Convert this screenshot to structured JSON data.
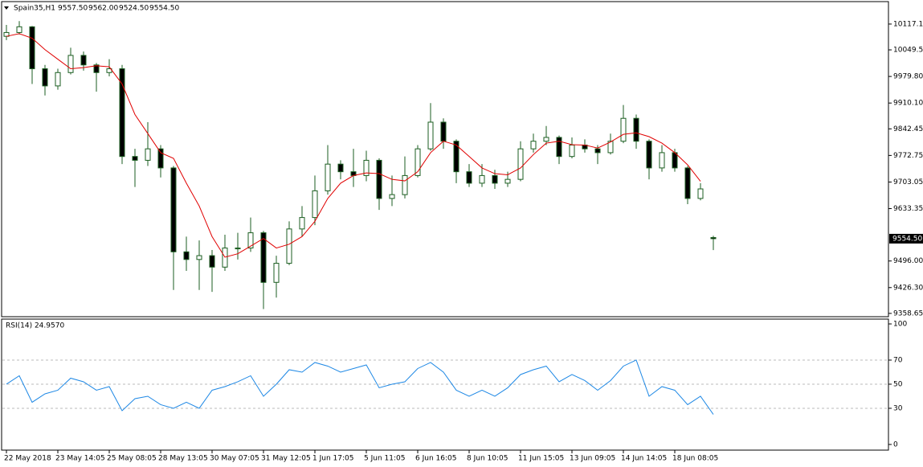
{
  "chart_data": [
    {
      "type": "candlestick",
      "symbol": "Spain35,H1",
      "header_values": [
        "9557.50",
        "9562.00",
        "9524.50",
        "9554.50"
      ],
      "last_price_label": "9554.50",
      "categories": [
        "22 May 2018",
        null,
        null,
        null,
        "23 May 14:05",
        null,
        null,
        null,
        "25 May 08:05",
        null,
        null,
        null,
        "28 May 13:05",
        null,
        null,
        null,
        "30 May 07:05",
        null,
        null,
        null,
        "31 May 12:05",
        null,
        null,
        null,
        "1 Jun 17:05",
        null,
        null,
        null,
        "5 Jun 11:05",
        null,
        null,
        null,
        "6 Jun 16:05",
        null,
        null,
        null,
        "8 Jun 10:05",
        null,
        null,
        null,
        "11 Jun 15:05",
        null,
        null,
        null,
        "13 Jun 09:05",
        null,
        null,
        null,
        "14 Jun 14:05",
        null,
        null,
        null,
        "18 Jun 08:05",
        null,
        null,
        null
      ],
      "ohlc": [
        [
          10085,
          10115,
          10075,
          10095
        ],
        [
          10095,
          10125,
          10090,
          10110
        ],
        [
          10110,
          10112,
          9960,
          10000
        ],
        [
          10000,
          10010,
          9930,
          9955
        ],
        [
          9955,
          10000,
          9945,
          9990
        ],
        [
          9990,
          10055,
          9985,
          10035
        ],
        [
          10035,
          10045,
          9995,
          10010
        ],
        [
          10010,
          10015,
          9940,
          9990
        ],
        [
          9990,
          10025,
          9980,
          10000
        ],
        [
          10000,
          10010,
          9750,
          9770
        ],
        [
          9770,
          9790,
          9690,
          9760
        ],
        [
          9760,
          9860,
          9745,
          9790
        ],
        [
          9790,
          9800,
          9715,
          9740
        ],
        [
          9740,
          9745,
          9420,
          9520
        ],
        [
          9520,
          9560,
          9470,
          9500
        ],
        [
          9500,
          9550,
          9420,
          9510
        ],
        [
          9510,
          9525,
          9415,
          9480
        ],
        [
          9480,
          9565,
          9470,
          9530
        ],
        [
          9530,
          9570,
          9500,
          9530
        ],
        [
          9530,
          9610,
          9520,
          9570
        ],
        [
          9570,
          9575,
          9370,
          9440
        ],
        [
          9440,
          9510,
          9400,
          9490
        ],
        [
          9490,
          9600,
          9485,
          9580
        ],
        [
          9580,
          9640,
          9560,
          9610
        ],
        [
          9610,
          9720,
          9590,
          9680
        ],
        [
          9680,
          9800,
          9670,
          9750
        ],
        [
          9750,
          9760,
          9710,
          9730
        ],
        [
          9730,
          9790,
          9690,
          9720
        ],
        [
          9720,
          9785,
          9705,
          9760
        ],
        [
          9760,
          9765,
          9630,
          9660
        ],
        [
          9660,
          9720,
          9640,
          9670
        ],
        [
          9670,
          9770,
          9660,
          9720
        ],
        [
          9720,
          9800,
          9715,
          9790
        ],
        [
          9790,
          9910,
          9785,
          9860
        ],
        [
          9860,
          9870,
          9790,
          9810
        ],
        [
          9810,
          9815,
          9700,
          9730
        ],
        [
          9730,
          9750,
          9690,
          9700
        ],
        [
          9700,
          9750,
          9690,
          9720
        ],
        [
          9720,
          9735,
          9685,
          9700
        ],
        [
          9700,
          9730,
          9690,
          9710
        ],
        [
          9710,
          9810,
          9705,
          9790
        ],
        [
          9790,
          9830,
          9780,
          9810
        ],
        [
          9810,
          9850,
          9800,
          9820
        ],
        [
          9820,
          9825,
          9750,
          9770
        ],
        [
          9770,
          9820,
          9765,
          9800
        ],
        [
          9800,
          9815,
          9780,
          9790
        ],
        [
          9790,
          9800,
          9750,
          9780
        ],
        [
          9780,
          9830,
          9775,
          9810
        ],
        [
          9810,
          9905,
          9805,
          9870
        ],
        [
          9870,
          9880,
          9790,
          9810
        ],
        [
          9810,
          9815,
          9710,
          9740
        ],
        [
          9740,
          9800,
          9730,
          9780
        ],
        [
          9780,
          9790,
          9730,
          9740
        ],
        [
          9740,
          9745,
          9645,
          9660
        ],
        [
          9660,
          9700,
          9655,
          9685
        ],
        [
          9557.5,
          9562,
          9524.5,
          9554.5
        ]
      ],
      "candle_color": "#1b5e20",
      "series": [
        {
          "color": "#e00000",
          "values": [
            10085,
            10092,
            10080,
            10050,
            10025,
            10000,
            10003,
            10008,
            10005,
            9960,
            9880,
            9830,
            9780,
            9765,
            9700,
            9640,
            9560,
            9506,
            9515,
            9535,
            9555,
            9530,
            9540,
            9560,
            9600,
            9660,
            9700,
            9720,
            9727,
            9725,
            9710,
            9706,
            9730,
            9780,
            9810,
            9800,
            9770,
            9740,
            9725,
            9722,
            9740,
            9775,
            9805,
            9810,
            9801,
            9800,
            9792,
            9808,
            9828,
            9832,
            9822,
            9805,
            9780,
            9748,
            9705,
            null
          ]
        }
      ],
      "ylim": [
        9350,
        10176
      ],
      "yticks": [
        10117.15,
        {
          "value": 10049.5,
          "label": "10049.50"
        },
        {
          "value": 9979.8,
          "label": "9979.80"
        },
        {
          "value": 9910.1,
          "label": "9910.10"
        },
        9842.45,
        9772.75,
        9703.05,
        9633.35,
        {
          "value": 9496,
          "label": "9496.00"
        },
        {
          "value": 9426.3,
          "label": "9426.30"
        },
        9358.65
      ]
    },
    {
      "type": "line",
      "title": "RSI(14) 24.9570",
      "color": "#1e88e5",
      "values": [
        50,
        57,
        35,
        42,
        45,
        55,
        52,
        45,
        48,
        28,
        38,
        40,
        33,
        30,
        35,
        30,
        45,
        48,
        52,
        57,
        40,
        50,
        62,
        60,
        68,
        65,
        60,
        63,
        66,
        47,
        50,
        52,
        63,
        68,
        60,
        45,
        40,
        45,
        40,
        47,
        58,
        62,
        65,
        52,
        58,
        53,
        45,
        53,
        65,
        70,
        40,
        48,
        45,
        33,
        40,
        24.957
      ],
      "ylim": [
        -4.7,
        104
      ],
      "yticks": [
        100,
        70,
        50,
        30,
        0
      ],
      "levels": [
        70,
        50,
        30
      ]
    }
  ]
}
